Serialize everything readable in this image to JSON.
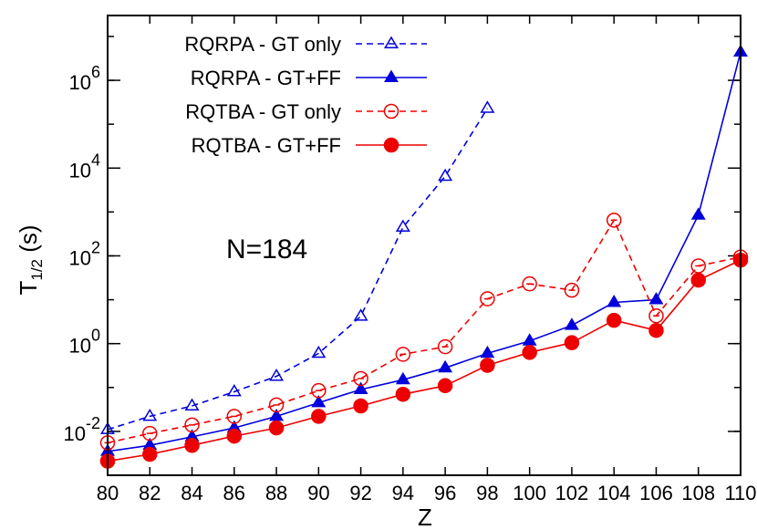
{
  "chart_data": {
    "type": "line",
    "xlabel": "Z",
    "ylabel_main": "T",
    "ylabel_sub": "1/2",
    "ylabel_unit": " (s)",
    "y_scale": "log",
    "xlim": [
      80,
      110
    ],
    "ylim": [
      0.001,
      30000000
    ],
    "x_ticks": [
      80,
      82,
      84,
      86,
      88,
      90,
      92,
      94,
      96,
      98,
      100,
      102,
      104,
      106,
      108,
      110
    ],
    "y_ticks": [
      {
        "value": 0.01,
        "base": "10",
        "exp": "-2"
      },
      {
        "value": 1,
        "base": "10",
        "exp": "0"
      },
      {
        "value": 100,
        "base": "10",
        "exp": "2"
      },
      {
        "value": 10000,
        "base": "10",
        "exp": "4"
      },
      {
        "value": 1000000,
        "base": "10",
        "exp": "6"
      }
    ],
    "annotation": "N=184",
    "legend_position": "top-left",
    "series": [
      {
        "name": "RQRPA - GT only",
        "color": "#0000dd",
        "dashed": true,
        "marker": "triangle-open",
        "x": [
          80,
          82,
          84,
          86,
          88,
          90,
          92,
          94,
          96,
          98
        ],
        "y": [
          0.011,
          0.022,
          0.038,
          0.08,
          0.18,
          0.6,
          4.2,
          450,
          6500,
          230000
        ]
      },
      {
        "name": "RQRPA - GT+FF",
        "color": "#0000dd",
        "dashed": false,
        "marker": "triangle-filled",
        "x": [
          80,
          82,
          84,
          86,
          88,
          90,
          92,
          94,
          96,
          98,
          100,
          102,
          104,
          106,
          108,
          110
        ],
        "y": [
          0.0035,
          0.0048,
          0.0075,
          0.012,
          0.022,
          0.045,
          0.09,
          0.15,
          0.28,
          0.6,
          1.15,
          2.6,
          8.7,
          10,
          850,
          4400000
        ]
      },
      {
        "name": "RQTBA - GT only",
        "color": "#ee0000",
        "dashed": true,
        "marker": "circle-open",
        "x": [
          80,
          82,
          84,
          86,
          88,
          90,
          92,
          94,
          96,
          98,
          100,
          102,
          104,
          106,
          108,
          110
        ],
        "y": [
          0.0055,
          0.009,
          0.014,
          0.022,
          0.04,
          0.085,
          0.16,
          0.57,
          0.85,
          10.5,
          23,
          16.5,
          650,
          4.3,
          59,
          94
        ]
      },
      {
        "name": "RQTBA - GT+FF",
        "color": "#ee0000",
        "dashed": false,
        "marker": "circle-filled",
        "x": [
          80,
          82,
          84,
          86,
          88,
          90,
          92,
          94,
          96,
          98,
          100,
          102,
          104,
          106,
          108,
          110
        ],
        "y": [
          0.0021,
          0.003,
          0.0048,
          0.0078,
          0.012,
          0.022,
          0.038,
          0.07,
          0.11,
          0.32,
          0.63,
          1.05,
          3.4,
          2,
          28,
          80
        ]
      }
    ]
  }
}
